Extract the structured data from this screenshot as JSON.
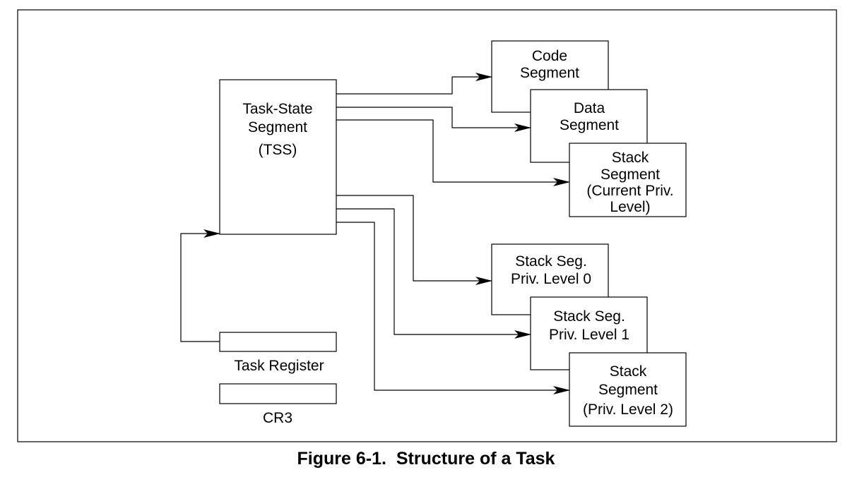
{
  "diagram": {
    "tss": {
      "lines": [
        "Task-State",
        "Segment",
        "(TSS)"
      ]
    },
    "code_segment": {
      "lines": [
        "Code",
        "Segment"
      ]
    },
    "data_segment": {
      "lines": [
        "Data",
        "Segment"
      ]
    },
    "stack_segment_current": {
      "lines": [
        "Stack",
        "Segment",
        "(Current Priv.",
        "Level)"
      ]
    },
    "stack_seg_level0": {
      "lines": [
        "Stack Seg.",
        "Priv. Level 0"
      ]
    },
    "stack_seg_level1": {
      "lines": [
        "Stack Seg.",
        "Priv. Level 1"
      ]
    },
    "stack_segment_level2": {
      "lines": [
        "Stack",
        "Segment",
        "(Priv. Level 2)"
      ]
    },
    "task_register": {
      "label": "Task Register"
    },
    "cr3": {
      "label": "CR3"
    }
  },
  "caption": {
    "figure_number": "Figure 6-1.",
    "title": "Structure of a Task"
  }
}
